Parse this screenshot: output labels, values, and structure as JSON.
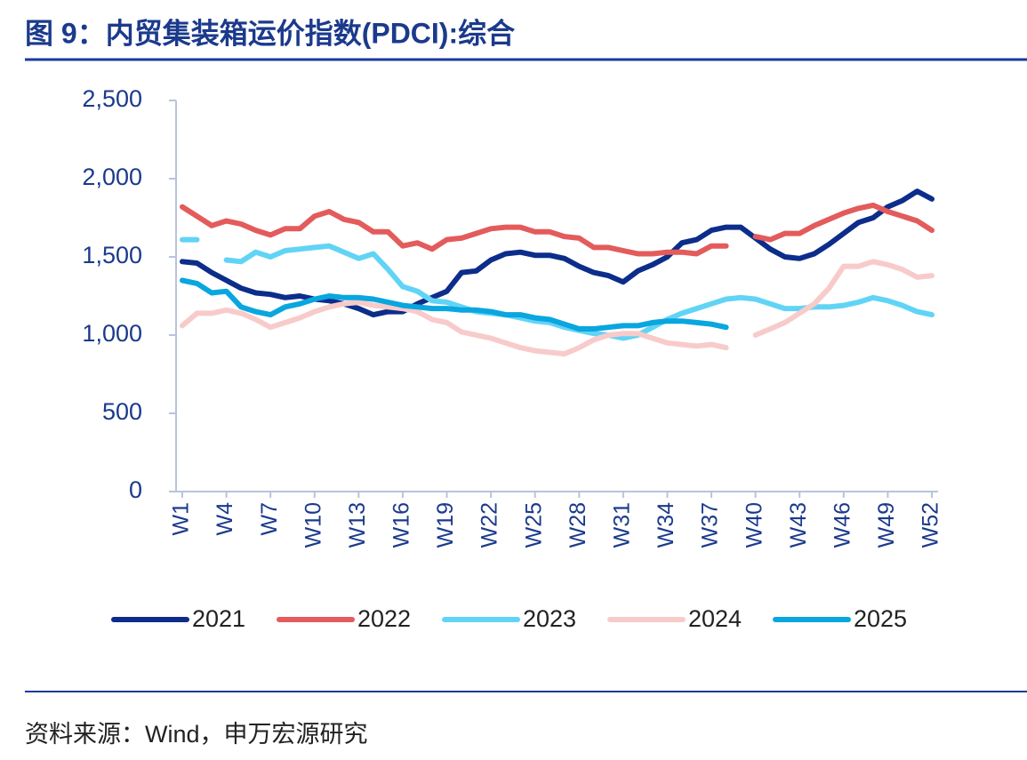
{
  "chart_data": {
    "type": "line",
    "title": "图 9：内贸集装箱运价指数(PDCI):综合",
    "source": "资料来源：Wind，申万宏源研究",
    "categories": [
      "W1",
      null,
      null,
      "W4",
      null,
      null,
      "W7",
      null,
      null,
      "W10",
      null,
      null,
      "W13",
      null,
      null,
      "W16",
      null,
      null,
      "W19",
      null,
      null,
      "W22",
      null,
      null,
      "W25",
      null,
      null,
      "W28",
      null,
      null,
      "W31",
      null,
      null,
      "W34",
      null,
      null,
      "W37",
      null,
      null,
      "W40",
      null,
      null,
      "W43",
      null,
      null,
      "W46",
      null,
      null,
      "W49",
      null,
      null,
      "W52"
    ],
    "ylim": [
      0,
      2500
    ],
    "yticks": [
      0,
      500,
      {
        "value": 1000,
        "label": "1,000"
      },
      {
        "value": 1500,
        "label": "1,500"
      },
      {
        "value": 2000,
        "label": "2,000"
      },
      {
        "value": 2500,
        "label": "2,500"
      }
    ],
    "grid": false,
    "legend": "bottom",
    "series": [
      {
        "name": "2021",
        "color": "#0c2d8a",
        "values": [
          1470,
          1460,
          1400,
          1350,
          1300,
          1270,
          1260,
          1240,
          1250,
          1230,
          1220,
          1200,
          1170,
          1130,
          1150,
          1150,
          1200,
          1240,
          1280,
          1400,
          1410,
          1480,
          1520,
          1530,
          1510,
          1510,
          1490,
          1440,
          1400,
          1380,
          1340,
          1410,
          1450,
          1500,
          1590,
          1610,
          1670,
          1690,
          1690,
          1620,
          1550,
          1500,
          1490,
          1520,
          1580,
          1650,
          1720,
          1750,
          1820,
          1860,
          1920,
          1870
        ]
      },
      {
        "name": "2022",
        "color": "#e35b5b",
        "values": [
          1820,
          1760,
          1700,
          1730,
          1710,
          1670,
          1640,
          1680,
          1680,
          1760,
          1790,
          1740,
          1720,
          1660,
          1660,
          1570,
          1590,
          1550,
          1610,
          1620,
          1650,
          1680,
          1690,
          1690,
          1660,
          1660,
          1630,
          1620,
          1560,
          1560,
          1540,
          1520,
          1520,
          1530,
          1530,
          1520,
          1570,
          1570,
          null,
          1630,
          1610,
          1650,
          1650,
          1700,
          1740,
          1780,
          1810,
          1830,
          1790,
          1760,
          1730,
          1670
        ]
      },
      {
        "name": "2023",
        "color": "#61d4f6",
        "values": [
          1610,
          1610,
          null,
          1480,
          1470,
          1530,
          1500,
          1540,
          1550,
          1560,
          1570,
          1530,
          1490,
          1520,
          1420,
          1310,
          1280,
          1220,
          1210,
          1180,
          1150,
          1140,
          1130,
          1110,
          1090,
          1080,
          1050,
          1030,
          1010,
          1000,
          980,
          1000,
          1050,
          1100,
          1140,
          1170,
          1200,
          1230,
          1240,
          1230,
          1200,
          1170,
          1170,
          1180,
          1180,
          1190,
          1210,
          1240,
          1220,
          1190,
          1150,
          1130
        ]
      },
      {
        "name": "2024",
        "color": "#f8cbcb",
        "values": [
          1060,
          1140,
          1140,
          1160,
          1140,
          1100,
          1050,
          1080,
          1110,
          1150,
          1180,
          1200,
          1210,
          1190,
          1180,
          1170,
          1150,
          1100,
          1080,
          1020,
          1000,
          980,
          950,
          920,
          900,
          890,
          880,
          920,
          970,
          1000,
          1010,
          1010,
          980,
          950,
          940,
          930,
          940,
          920,
          null,
          1000,
          1040,
          1080,
          1140,
          1200,
          1300,
          1440,
          1440,
          1470,
          1450,
          1420,
          1370,
          1380
        ]
      },
      {
        "name": "2025",
        "color": "#09a6df",
        "values": [
          1350,
          1330,
          1270,
          1280,
          1180,
          1150,
          1130,
          1180,
          1200,
          1230,
          1250,
          1240,
          1240,
          1230,
          1210,
          1190,
          1180,
          1170,
          1170,
          1160,
          1160,
          1150,
          1130,
          1130,
          1110,
          1100,
          1070,
          1040,
          1040,
          1050,
          1060,
          1060,
          1080,
          1090,
          1090,
          1080,
          1070,
          1050,
          null,
          null,
          null,
          null,
          null,
          null,
          null,
          null,
          null,
          null,
          null,
          null,
          null,
          null
        ]
      }
    ]
  }
}
